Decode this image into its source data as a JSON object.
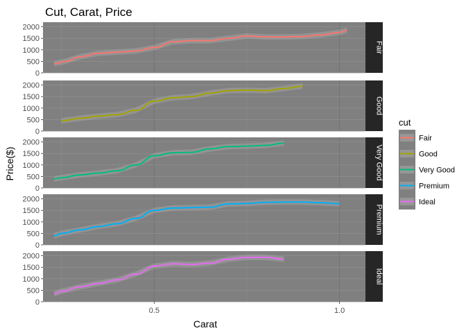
{
  "chart_data": {
    "type": "line",
    "title": "Cut, Carat, Price",
    "xlabel": "Carat",
    "ylabel": "Price($)",
    "xlim": [
      0.2,
      1.07
    ],
    "ylim": [
      0,
      2200
    ],
    "x_ticks": [
      0.5,
      1.0
    ],
    "x_tick_labels": [
      "0.5",
      "1.0"
    ],
    "y_ticks": [
      0,
      500,
      1000,
      1500,
      2000
    ],
    "y_tick_labels": [
      "0",
      "500",
      "1000",
      "1500",
      "2000"
    ],
    "grid": true,
    "facet_by": "cut",
    "legend": {
      "title": "cut",
      "position": "right"
    },
    "series": [
      {
        "name": "Fair",
        "color": "#F8766D",
        "x": [
          0.23,
          0.26,
          0.3,
          0.35,
          0.4,
          0.45,
          0.5,
          0.55,
          0.6,
          0.65,
          0.7,
          0.75,
          0.8,
          0.85,
          0.9,
          0.95,
          1.0,
          1.02
        ],
        "y": [
          400,
          500,
          700,
          850,
          900,
          950,
          1100,
          1350,
          1400,
          1400,
          1500,
          1600,
          1560,
          1560,
          1580,
          1650,
          1760,
          1850
        ]
      },
      {
        "name": "Good",
        "color": "#A3A500",
        "x": [
          0.25,
          0.3,
          0.35,
          0.4,
          0.45,
          0.5,
          0.55,
          0.6,
          0.65,
          0.7,
          0.75,
          0.8,
          0.85,
          0.9
        ],
        "y": [
          450,
          560,
          650,
          720,
          900,
          1300,
          1450,
          1500,
          1650,
          1760,
          1780,
          1760,
          1850,
          1960
        ]
      },
      {
        "name": "Very Good",
        "color": "#00BF7D",
        "x": [
          0.23,
          0.25,
          0.3,
          0.35,
          0.4,
          0.45,
          0.5,
          0.55,
          0.6,
          0.65,
          0.7,
          0.75,
          0.8,
          0.85
        ],
        "y": [
          400,
          450,
          570,
          650,
          750,
          1000,
          1400,
          1530,
          1550,
          1700,
          1800,
          1820,
          1850,
          1950
        ]
      },
      {
        "name": "Premium",
        "color": "#00B0F6",
        "x": [
          0.23,
          0.25,
          0.3,
          0.35,
          0.4,
          0.45,
          0.5,
          0.55,
          0.6,
          0.65,
          0.7,
          0.75,
          0.8,
          0.85,
          0.9,
          0.95,
          1.0
        ],
        "y": [
          400,
          500,
          650,
          800,
          920,
          1150,
          1500,
          1600,
          1620,
          1640,
          1780,
          1800,
          1850,
          1860,
          1860,
          1830,
          1790
        ]
      },
      {
        "name": "Ideal",
        "color": "#E76BF3",
        "x": [
          0.23,
          0.25,
          0.3,
          0.35,
          0.4,
          0.45,
          0.5,
          0.55,
          0.6,
          0.65,
          0.7,
          0.75,
          0.8,
          0.85
        ],
        "y": [
          350,
          460,
          650,
          800,
          950,
          1200,
          1550,
          1650,
          1620,
          1680,
          1850,
          1930,
          1930,
          1850
        ]
      }
    ]
  }
}
